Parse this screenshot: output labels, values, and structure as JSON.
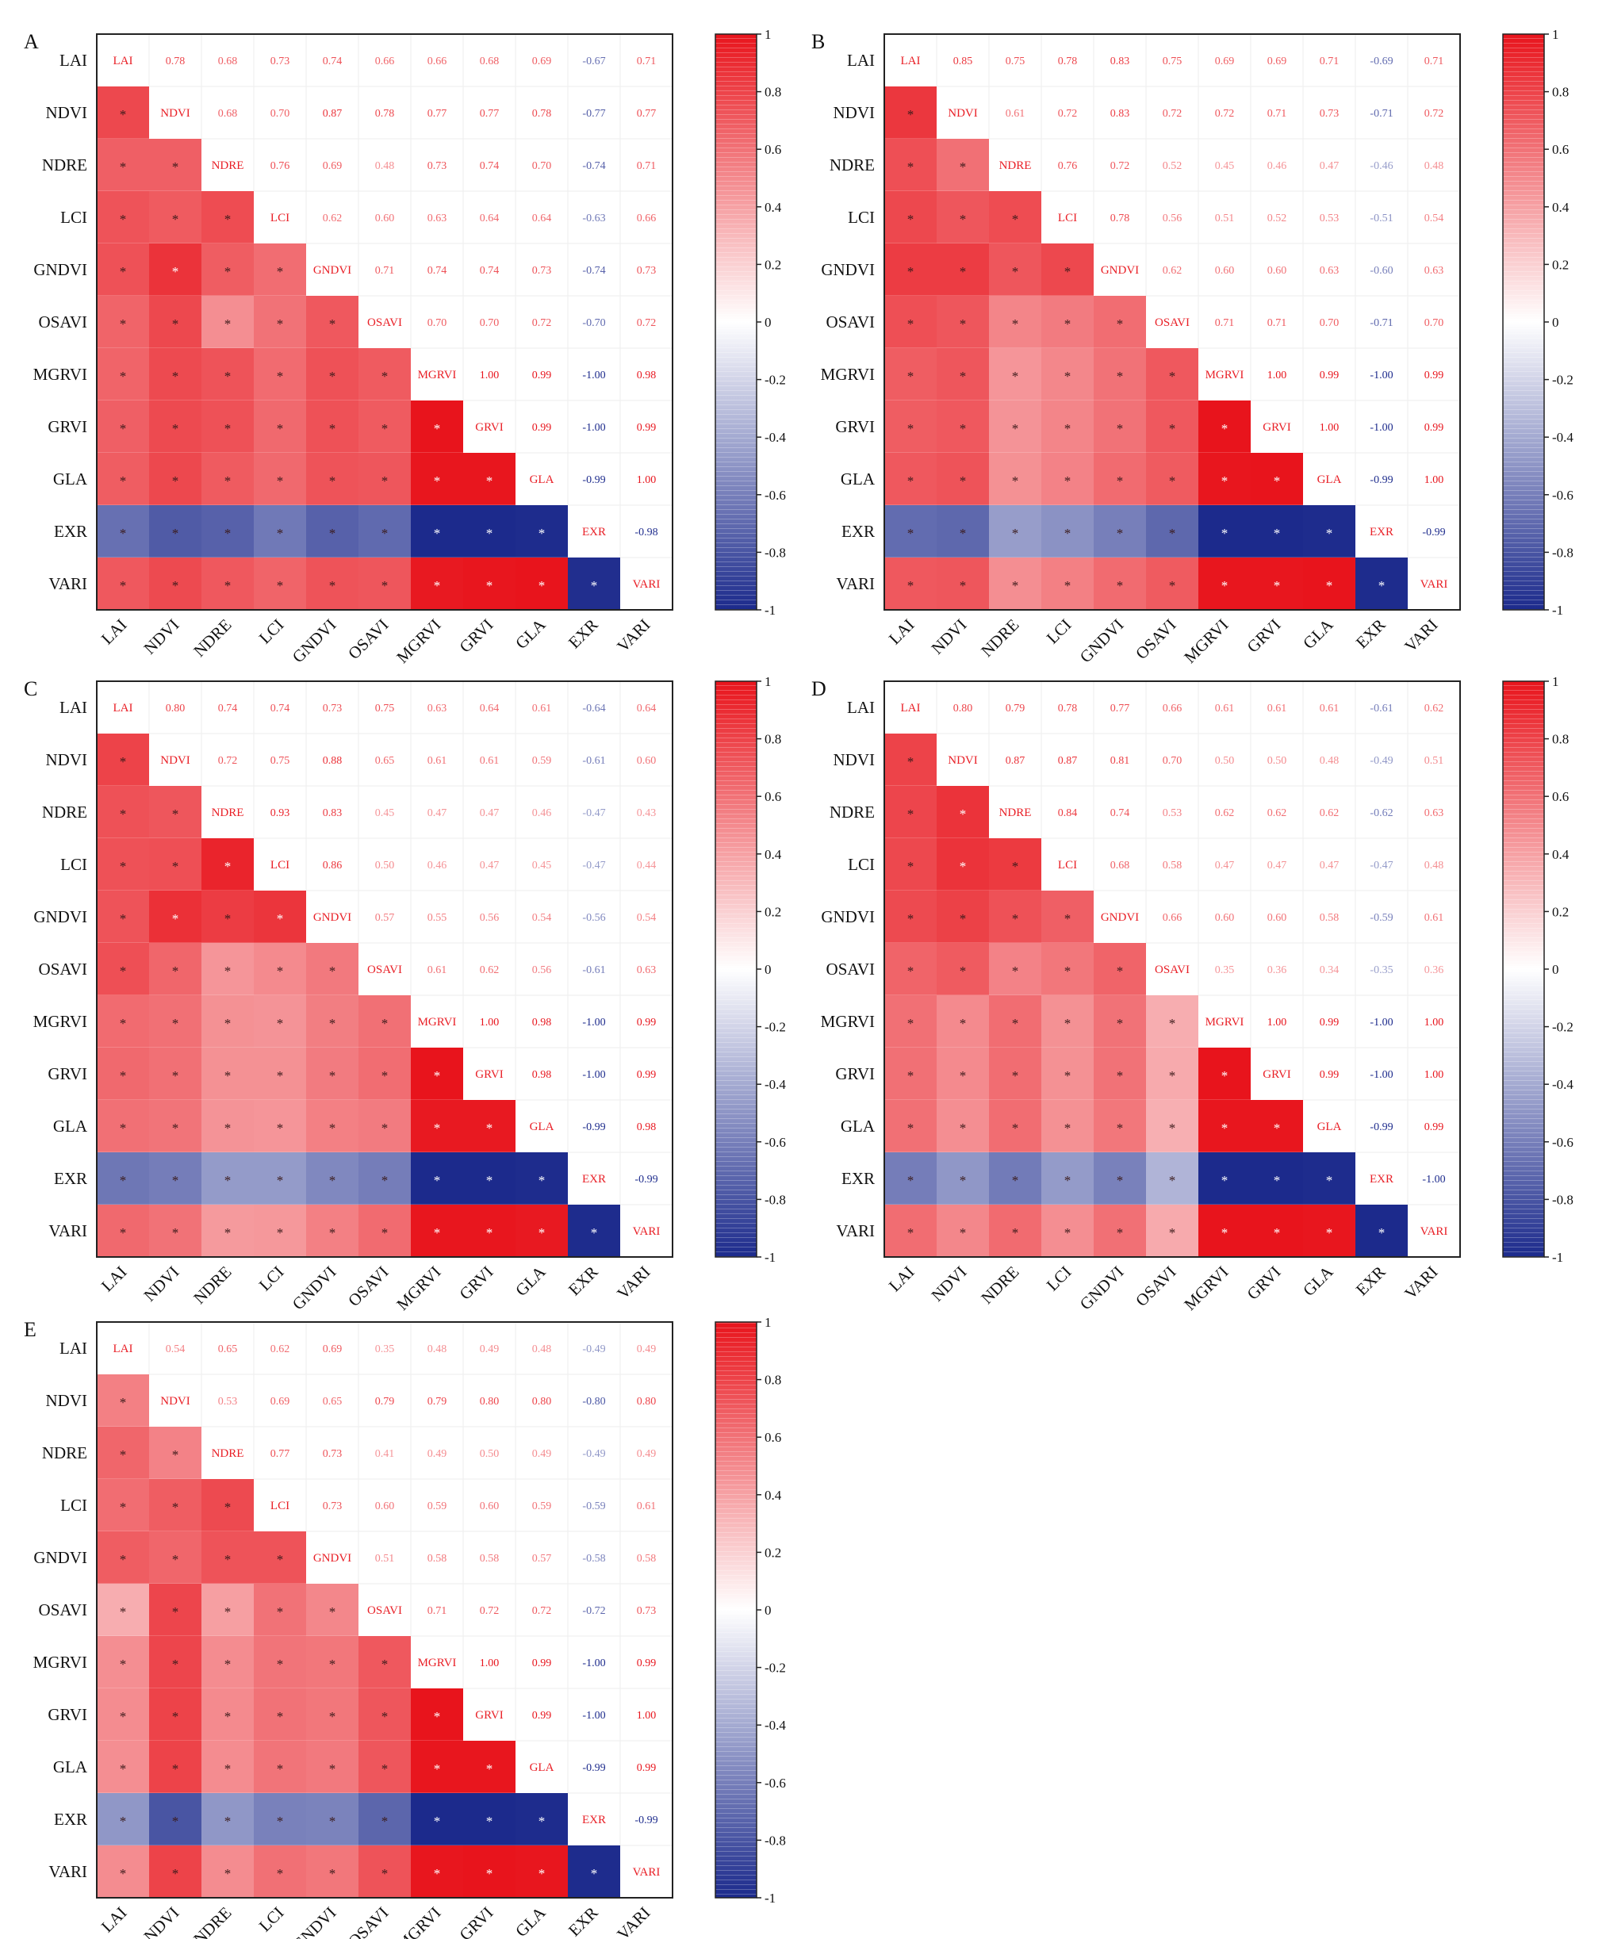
{
  "figure": {
    "panel_letters": [
      "A",
      "B",
      "C",
      "D",
      "E"
    ]
  },
  "colors": {
    "positive": "#e8141c",
    "negative": "#1c2a8c",
    "zero": "#ffffff",
    "frame": "#222222"
  },
  "colorbar": {
    "tick_labels": [
      "1",
      "0.8",
      "0.6",
      "0.4",
      "0.2",
      "0",
      "-0.2",
      "-0.4",
      "-0.6",
      "-0.8",
      "-1"
    ]
  },
  "chart_data": [
    {
      "type": "heatmap",
      "panel": "A",
      "variables": [
        "LAI",
        "NDVI",
        "NDRE",
        "LCI",
        "GNDVI",
        "OSAVI",
        "MGRVI",
        "GRVI",
        "GLA",
        "EXR",
        "VARI"
      ],
      "significance_marker": "*",
      "value_range": [
        -1,
        1
      ],
      "matrix": [
        [
          1,
          0.78,
          0.68,
          0.73,
          0.74,
          0.66,
          0.66,
          0.68,
          0.69,
          -0.67,
          0.71
        ],
        [
          0.78,
          1,
          0.68,
          0.7,
          0.87,
          0.78,
          0.77,
          0.77,
          0.78,
          -0.77,
          0.77
        ],
        [
          0.68,
          0.68,
          1,
          0.76,
          0.69,
          0.48,
          0.73,
          0.74,
          0.7,
          -0.74,
          0.71
        ],
        [
          0.73,
          0.7,
          0.76,
          1,
          0.62,
          0.6,
          0.63,
          0.64,
          0.64,
          -0.63,
          0.66
        ],
        [
          0.74,
          0.87,
          0.69,
          0.62,
          1,
          0.71,
          0.74,
          0.74,
          0.73,
          -0.74,
          0.73
        ],
        [
          0.66,
          0.78,
          0.48,
          0.6,
          0.71,
          1,
          0.7,
          0.7,
          0.72,
          -0.7,
          0.72
        ],
        [
          0.66,
          0.77,
          0.73,
          0.63,
          0.74,
          0.7,
          1,
          1.0,
          0.99,
          -1.0,
          0.98
        ],
        [
          0.68,
          0.77,
          0.74,
          0.64,
          0.74,
          0.7,
          1.0,
          1,
          0.99,
          -1.0,
          0.99
        ],
        [
          0.69,
          0.78,
          0.7,
          0.64,
          0.73,
          0.72,
          0.99,
          0.99,
          1,
          -0.99,
          1.0
        ],
        [
          -0.67,
          -0.77,
          -0.74,
          -0.63,
          -0.74,
          -0.7,
          -1.0,
          -1.0,
          -0.99,
          1,
          -0.98
        ],
        [
          0.71,
          0.77,
          0.71,
          0.66,
          0.73,
          0.72,
          0.98,
          0.99,
          1.0,
          -0.98,
          1
        ]
      ]
    },
    {
      "type": "heatmap",
      "panel": "B",
      "variables": [
        "LAI",
        "NDVI",
        "NDRE",
        "LCI",
        "GNDVI",
        "OSAVI",
        "MGRVI",
        "GRVI",
        "GLA",
        "EXR",
        "VARI"
      ],
      "significance_marker": "*",
      "value_range": [
        -1,
        1
      ],
      "matrix": [
        [
          1,
          0.85,
          0.75,
          0.78,
          0.83,
          0.75,
          0.69,
          0.69,
          0.71,
          -0.69,
          0.71
        ],
        [
          0.85,
          1,
          0.61,
          0.72,
          0.83,
          0.72,
          0.72,
          0.71,
          0.73,
          -0.71,
          0.72
        ],
        [
          0.75,
          0.61,
          1,
          0.76,
          0.72,
          0.52,
          0.45,
          0.46,
          0.47,
          -0.46,
          0.48
        ],
        [
          0.78,
          0.72,
          0.76,
          1,
          0.78,
          0.56,
          0.51,
          0.52,
          0.53,
          -0.51,
          0.54
        ],
        [
          0.83,
          0.83,
          0.72,
          0.78,
          1,
          0.62,
          0.6,
          0.6,
          0.63,
          -0.6,
          0.63
        ],
        [
          0.75,
          0.72,
          0.52,
          0.56,
          0.62,
          1,
          0.71,
          0.71,
          0.7,
          -0.71,
          0.7
        ],
        [
          0.69,
          0.72,
          0.45,
          0.51,
          0.6,
          0.71,
          1,
          1.0,
          0.99,
          -1.0,
          0.99
        ],
        [
          0.69,
          0.71,
          0.46,
          0.52,
          0.6,
          0.71,
          1.0,
          1,
          1.0,
          -1.0,
          0.99
        ],
        [
          0.71,
          0.73,
          0.47,
          0.53,
          0.63,
          0.7,
          0.99,
          1.0,
          1,
          -0.99,
          1.0
        ],
        [
          -0.69,
          -0.71,
          -0.46,
          -0.51,
          -0.6,
          -0.71,
          -1.0,
          -1.0,
          -0.99,
          1,
          -0.99
        ],
        [
          0.71,
          0.72,
          0.48,
          0.54,
          0.63,
          0.7,
          0.99,
          0.99,
          1.0,
          -0.99,
          1
        ]
      ]
    },
    {
      "type": "heatmap",
      "panel": "C",
      "variables": [
        "LAI",
        "NDVI",
        "NDRE",
        "LCI",
        "GNDVI",
        "OSAVI",
        "MGRVI",
        "GRVI",
        "GLA",
        "EXR",
        "VARI"
      ],
      "significance_marker": "*",
      "value_range": [
        -1,
        1
      ],
      "matrix": [
        [
          1,
          0.8,
          0.74,
          0.74,
          0.73,
          0.75,
          0.63,
          0.64,
          0.61,
          -0.64,
          0.64
        ],
        [
          0.8,
          1,
          0.72,
          0.75,
          0.88,
          0.65,
          0.61,
          0.61,
          0.59,
          -0.61,
          0.6
        ],
        [
          0.74,
          0.72,
          1,
          0.93,
          0.83,
          0.45,
          0.47,
          0.47,
          0.46,
          -0.47,
          0.43
        ],
        [
          0.74,
          0.75,
          0.93,
          1,
          0.86,
          0.5,
          0.46,
          0.47,
          0.45,
          -0.47,
          0.44
        ],
        [
          0.73,
          0.88,
          0.83,
          0.86,
          1,
          0.57,
          0.55,
          0.56,
          0.54,
          -0.56,
          0.54
        ],
        [
          0.75,
          0.65,
          0.45,
          0.5,
          0.57,
          1,
          0.61,
          0.62,
          0.56,
          -0.61,
          0.63
        ],
        [
          0.63,
          0.61,
          0.47,
          0.46,
          0.55,
          0.61,
          1,
          1.0,
          0.98,
          -1.0,
          0.99
        ],
        [
          0.64,
          0.61,
          0.47,
          0.47,
          0.56,
          0.62,
          1.0,
          1,
          0.98,
          -1.0,
          0.99
        ],
        [
          0.61,
          0.59,
          0.46,
          0.45,
          0.54,
          0.56,
          0.98,
          0.98,
          1,
          -0.99,
          0.98
        ],
        [
          -0.64,
          -0.61,
          -0.47,
          -0.47,
          -0.56,
          -0.61,
          -1.0,
          -1.0,
          -0.99,
          1,
          -0.99
        ],
        [
          0.64,
          0.6,
          0.43,
          0.44,
          0.54,
          0.63,
          0.99,
          0.99,
          0.98,
          -0.99,
          1
        ]
      ]
    },
    {
      "type": "heatmap",
      "panel": "D",
      "variables": [
        "LAI",
        "NDVI",
        "NDRE",
        "LCI",
        "GNDVI",
        "OSAVI",
        "MGRVI",
        "GRVI",
        "GLA",
        "EXR",
        "VARI"
      ],
      "significance_marker": "*",
      "value_range": [
        -1,
        1
      ],
      "matrix": [
        [
          1,
          0.8,
          0.79,
          0.78,
          0.77,
          0.66,
          0.61,
          0.61,
          0.61,
          -0.61,
          0.62
        ],
        [
          0.8,
          1,
          0.87,
          0.87,
          0.81,
          0.7,
          0.5,
          0.5,
          0.48,
          -0.49,
          0.51
        ],
        [
          0.79,
          0.87,
          1,
          0.84,
          0.74,
          0.53,
          0.62,
          0.62,
          0.62,
          -0.62,
          0.63
        ],
        [
          0.78,
          0.87,
          0.84,
          1,
          0.68,
          0.58,
          0.47,
          0.47,
          0.47,
          -0.47,
          0.48
        ],
        [
          0.77,
          0.81,
          0.74,
          0.68,
          1,
          0.66,
          0.6,
          0.6,
          0.58,
          -0.59,
          0.61
        ],
        [
          0.66,
          0.7,
          0.53,
          0.58,
          0.66,
          1,
          0.35,
          0.36,
          0.34,
          -0.35,
          0.36
        ],
        [
          0.61,
          0.5,
          0.62,
          0.47,
          0.6,
          0.35,
          1,
          1.0,
          0.99,
          -1.0,
          1.0
        ],
        [
          0.61,
          0.5,
          0.62,
          0.47,
          0.6,
          0.36,
          1.0,
          1,
          0.99,
          -1.0,
          1.0
        ],
        [
          0.61,
          0.48,
          0.62,
          0.47,
          0.58,
          0.34,
          0.99,
          0.99,
          1,
          -0.99,
          0.99
        ],
        [
          -0.61,
          -0.49,
          -0.62,
          -0.47,
          -0.59,
          -0.35,
          -1.0,
          -1.0,
          -0.99,
          1,
          -1.0
        ],
        [
          0.62,
          0.51,
          0.63,
          0.48,
          0.61,
          0.36,
          1.0,
          1.0,
          0.99,
          -1.0,
          1
        ]
      ]
    },
    {
      "type": "heatmap",
      "panel": "E",
      "variables": [
        "LAI",
        "NDVI",
        "NDRE",
        "LCI",
        "GNDVI",
        "OSAVI",
        "MGRVI",
        "GRVI",
        "GLA",
        "EXR",
        "VARI"
      ],
      "significance_marker": "*",
      "value_range": [
        -1,
        1
      ],
      "matrix": [
        [
          1,
          0.54,
          0.65,
          0.62,
          0.69,
          0.35,
          0.48,
          0.49,
          0.48,
          -0.49,
          0.49
        ],
        [
          0.54,
          1,
          0.53,
          0.69,
          0.65,
          0.79,
          0.79,
          0.8,
          0.8,
          -0.8,
          0.8
        ],
        [
          0.65,
          0.53,
          1,
          0.77,
          0.73,
          0.41,
          0.49,
          0.5,
          0.49,
          -0.49,
          0.49
        ],
        [
          0.62,
          0.69,
          0.77,
          1,
          0.73,
          0.6,
          0.59,
          0.6,
          0.59,
          -0.59,
          0.61
        ],
        [
          0.69,
          0.65,
          0.73,
          0.73,
          1,
          0.51,
          0.58,
          0.58,
          0.57,
          -0.58,
          0.58
        ],
        [
          0.35,
          0.79,
          0.41,
          0.6,
          0.51,
          1,
          0.71,
          0.72,
          0.72,
          -0.72,
          0.73
        ],
        [
          0.48,
          0.79,
          0.49,
          0.59,
          0.58,
          0.71,
          1,
          1.0,
          0.99,
          -1.0,
          0.99
        ],
        [
          0.49,
          0.8,
          0.5,
          0.6,
          0.58,
          0.72,
          1.0,
          1,
          0.99,
          -1.0,
          1.0
        ],
        [
          0.48,
          0.8,
          0.49,
          0.59,
          0.57,
          0.72,
          0.99,
          0.99,
          1,
          -0.99,
          0.99
        ],
        [
          -0.49,
          -0.8,
          -0.49,
          -0.59,
          -0.58,
          -0.72,
          -1.0,
          -1.0,
          -0.99,
          1,
          -0.99
        ],
        [
          0.49,
          0.8,
          0.49,
          0.61,
          0.58,
          0.73,
          0.99,
          1.0,
          0.99,
          -0.99,
          1
        ]
      ]
    }
  ]
}
